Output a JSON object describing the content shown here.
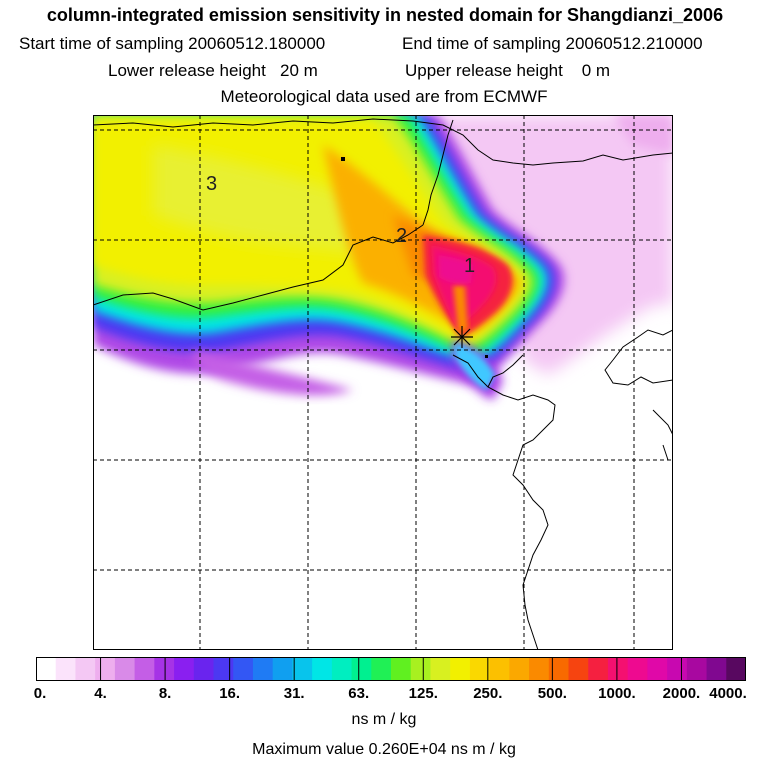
{
  "header": {
    "title": "column-integrated emission sensitivity in nested domain for Shangdianzi_2006",
    "start_label": "Start time of sampling",
    "start_value": "20060512.180000",
    "end_label": "End time of sampling",
    "end_value": "20060512.210000",
    "lower_label": "Lower release height",
    "lower_value": "20 m",
    "upper_label": "Upper release height",
    "upper_value": "0 m",
    "met_text": "Meteorological data used are from ECMWF"
  },
  "map": {
    "labels": [
      {
        "text": "3",
        "name": "day-label-3"
      },
      {
        "text": "2",
        "name": "day-label-2"
      },
      {
        "text": "1",
        "name": "day-label-1"
      }
    ],
    "station_marker": "release-site-star-icon"
  },
  "legend": {
    "ticks": [
      "0.",
      "4.",
      "8.",
      "16.",
      "31.",
      "63.",
      "125.",
      "250.",
      "500.",
      "1000.",
      "2000.",
      "4000."
    ],
    "colors": [
      "#ffffff",
      "#fbe3fb",
      "#f4c8f4",
      "#eeaeee",
      "#d98ae8",
      "#c45ee6",
      "#a633e6",
      "#8a1ff0",
      "#6a24ee",
      "#4c38f2",
      "#3357f4",
      "#1f7bf4",
      "#109ff0",
      "#08c4ec",
      "#00e6e6",
      "#00eec0",
      "#00f090",
      "#20f055",
      "#60f020",
      "#a8f020",
      "#d8f020",
      "#f2f000",
      "#fad800",
      "#fcc000",
      "#fba800",
      "#fa8a00",
      "#f86a00",
      "#f64410",
      "#f52040",
      "#f41070",
      "#ee0a90",
      "#e008a8",
      "#c808b0",
      "#a808a0",
      "#800890",
      "#580860"
    ],
    "unit": "ns m / kg",
    "max_text": "Maximum value  0.260E+04 ns m / kg"
  },
  "colors": {
    "white": "#ffffff",
    "light_pink": "#f4c8f4",
    "purple": "#a633e6",
    "blue": "#4c38f2",
    "cyan": "#00e6e6",
    "green": "#40f040",
    "yellow": "#e8f020",
    "orange": "#fbb000",
    "red": "#f41070",
    "magenta": "#e008a8"
  }
}
